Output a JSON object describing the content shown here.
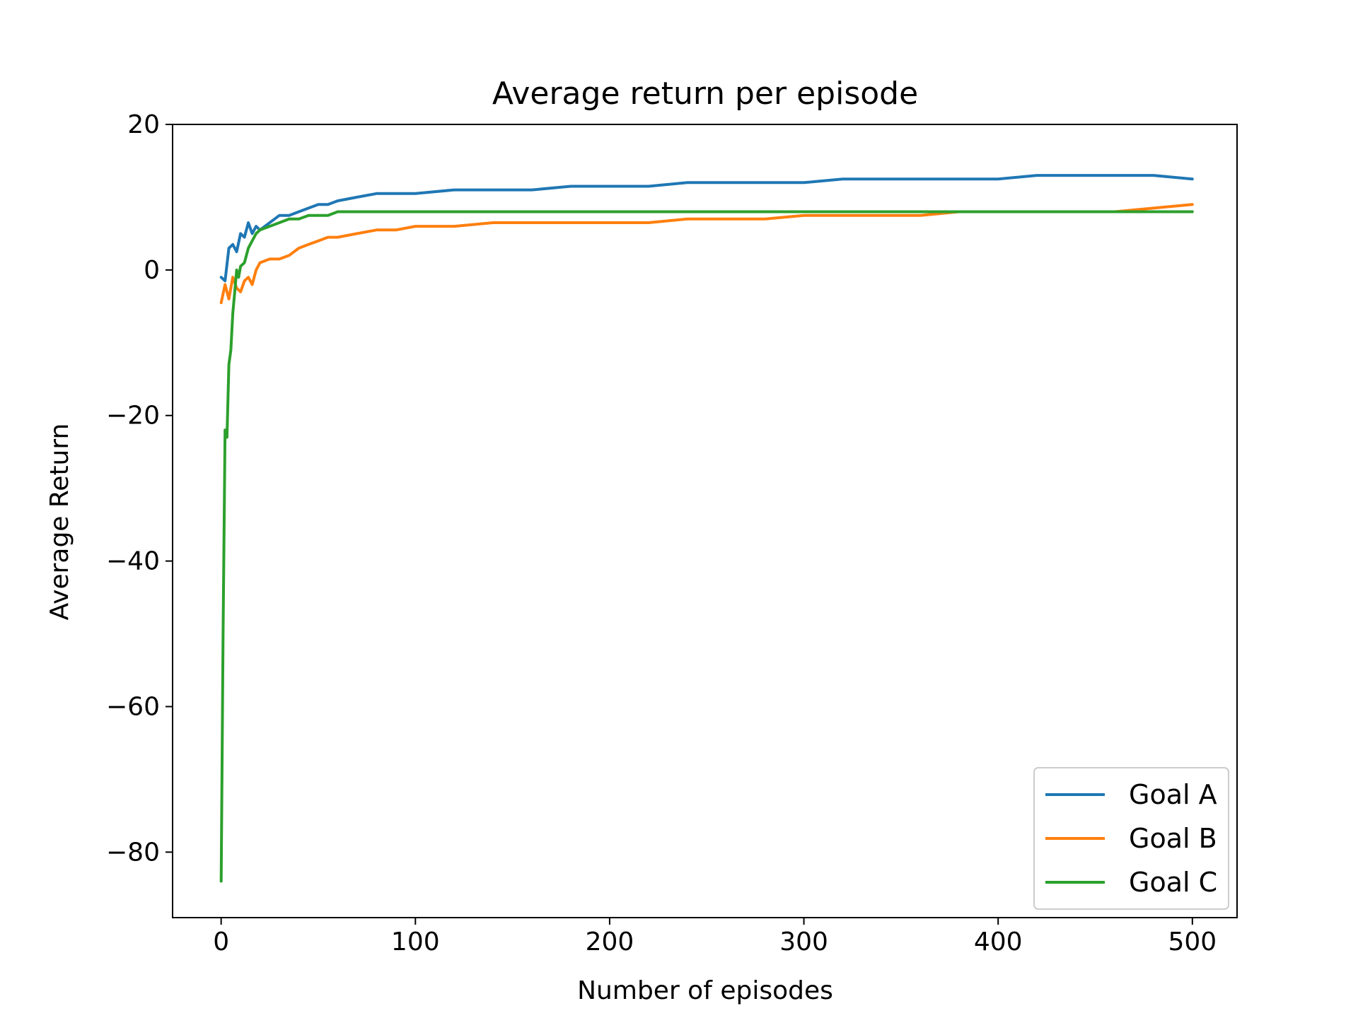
{
  "chart_data": {
    "type": "line",
    "title": "Average return per episode",
    "xlabel": "Number of episodes",
    "ylabel": "Average Return",
    "xlim": [
      -25,
      523
    ],
    "ylim": [
      -89,
      20
    ],
    "xticks": [
      0,
      100,
      200,
      300,
      400,
      500
    ],
    "yticks": [
      20,
      0,
      -20,
      -40,
      -60,
      -80
    ],
    "xtick_labels": [
      "0",
      "100",
      "200",
      "300",
      "400",
      "500"
    ],
    "ytick_labels": [
      "20",
      "0",
      "−20",
      "−40",
      "−60",
      "−80"
    ],
    "grid": false,
    "legend_position": "bottom-right",
    "series": [
      {
        "name": "Goal A",
        "color": "#1f77b4",
        "x": [
          0,
          2,
          4,
          6,
          8,
          10,
          12,
          14,
          16,
          18,
          20,
          25,
          30,
          35,
          40,
          45,
          50,
          55,
          60,
          70,
          80,
          90,
          100,
          120,
          140,
          160,
          180,
          200,
          220,
          240,
          260,
          280,
          300,
          320,
          340,
          360,
          380,
          400,
          420,
          440,
          460,
          480,
          500
        ],
        "y": [
          -1,
          -1.5,
          3,
          3.5,
          2.5,
          5,
          4.5,
          6.5,
          5,
          6,
          5.5,
          6.5,
          7.5,
          7.5,
          8,
          8.5,
          9,
          9,
          9.5,
          10,
          10.5,
          10.5,
          10.5,
          11,
          11,
          11,
          11.5,
          11.5,
          11.5,
          12,
          12,
          12,
          12,
          12.5,
          12.5,
          12.5,
          12.5,
          12.5,
          13,
          13,
          13,
          13,
          12.5
        ]
      },
      {
        "name": "Goal B",
        "color": "#ff7f0e",
        "x": [
          0,
          2,
          4,
          6,
          8,
          10,
          12,
          14,
          16,
          18,
          20,
          25,
          30,
          35,
          40,
          45,
          50,
          55,
          60,
          70,
          80,
          90,
          100,
          120,
          140,
          160,
          180,
          200,
          220,
          240,
          260,
          280,
          300,
          320,
          340,
          360,
          380,
          400,
          420,
          440,
          460,
          480,
          500
        ],
        "y": [
          -4.5,
          -2,
          -4,
          -1,
          -2.5,
          -3,
          -1.5,
          -1,
          -2,
          0,
          1,
          1.5,
          1.5,
          2,
          3,
          3.5,
          4,
          4.5,
          4.5,
          5,
          5.5,
          5.5,
          6,
          6,
          6.5,
          6.5,
          6.5,
          6.5,
          6.5,
          7,
          7,
          7,
          7.5,
          7.5,
          7.5,
          7.5,
          8,
          8,
          8,
          8,
          8,
          8.5,
          9
        ]
      },
      {
        "name": "Goal C",
        "color": "#2ca02c",
        "x": [
          0,
          1,
          2,
          3,
          4,
          5,
          6,
          7,
          8,
          9,
          10,
          12,
          14,
          16,
          18,
          20,
          25,
          30,
          35,
          40,
          45,
          50,
          55,
          60,
          70,
          80,
          90,
          100,
          120,
          140,
          160,
          180,
          200,
          220,
          240,
          260,
          280,
          300,
          320,
          340,
          360,
          380,
          400,
          420,
          440,
          460,
          480,
          500
        ],
        "y": [
          -84,
          -50,
          -22,
          -23,
          -13,
          -11,
          -6,
          -3,
          0,
          -1,
          0.5,
          1,
          3,
          4,
          5,
          5.5,
          6,
          6.5,
          7,
          7,
          7.5,
          7.5,
          7.5,
          8,
          8,
          8,
          8,
          8,
          8,
          8,
          8,
          8,
          8,
          8,
          8,
          8,
          8,
          8,
          8,
          8,
          8,
          8,
          8,
          8,
          8,
          8,
          8,
          8
        ]
      }
    ]
  }
}
